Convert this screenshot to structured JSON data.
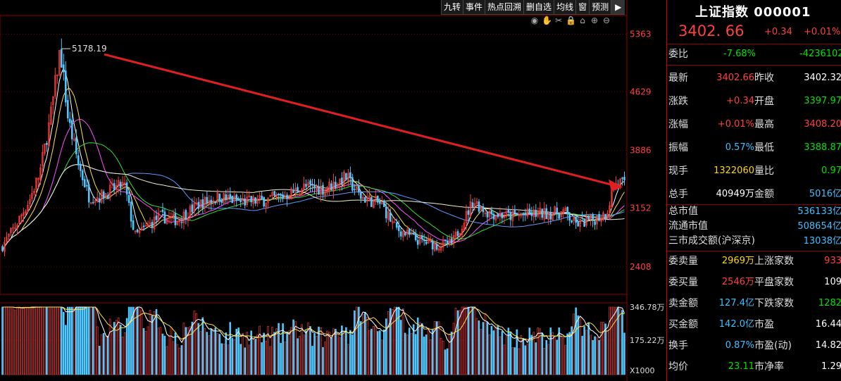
{
  "toolbar": [
    "九转",
    "事件",
    "热点回溯",
    "删自选",
    "均线",
    "窗",
    "预测"
  ],
  "toolbar_arrow": "▶",
  "icons": [
    "eye-icon",
    "hand-icon",
    "scissors-icon",
    "lock-icon",
    "home-icon",
    "zoom-in-icon",
    "zoom-out-icon"
  ],
  "chart_data": {
    "type": "candlestick",
    "price_axis": {
      "ticks": [
        "5363",
        "4629",
        "3886",
        "3152",
        "2408"
      ],
      "values": [
        5363,
        4629,
        3886,
        3152,
        2408
      ],
      "range": [
        2058,
        5600
      ]
    },
    "peak_label": "5178.19",
    "peak_value": 5178.19,
    "arrow": {
      "from_value": 5178.19,
      "to_value": 3402.66
    },
    "volume_axis": {
      "ticks": [
        "346.78万",
        "175.22万"
      ],
      "unit": "X1000"
    },
    "colors": {
      "up": "#ff3c3c",
      "down": "#4fc8ff",
      "ma5": "#ffffff",
      "ma10": "#ffe04a",
      "ma20": "#ff50ff",
      "ma30": "#32e032",
      "ma60": "#5a9cff",
      "ma120": "#f0f0d0",
      "arrow": "#e02020"
    }
  },
  "panel": {
    "title": "上证指数 000001",
    "price": "3402. 66",
    "change": "+0.34",
    "change_pct": "+0.01%",
    "weibi": {
      "label": "委比",
      "pct": "-7.68%",
      "val": "-4236102"
    },
    "rows": [
      {
        "l1": "最新",
        "v1": "3402.66",
        "c1": "red",
        "l2": "昨收",
        "v2": "3402.32",
        "c2": "white"
      },
      {
        "l1": "涨跌",
        "v1": "+0.34",
        "c1": "red",
        "l2": "开盘",
        "v2": "3397.97",
        "c2": "green"
      },
      {
        "l1": "涨幅",
        "v1": "+0.01%",
        "c1": "red",
        "l2": "最高",
        "v2": "3408.20",
        "c2": "red"
      },
      {
        "l1": "振幅",
        "v1": "0.57%",
        "c1": "cyan",
        "l2": "最低",
        "v2": "3388.87",
        "c2": "green"
      },
      {
        "l1": "现手",
        "v1": "1322060",
        "c1": "yellow",
        "l2": "量比",
        "v2": "0.97",
        "c2": "green"
      },
      {
        "l1": "总手",
        "v1": "40949万",
        "c1": "white",
        "l2": "金额",
        "v2": "5016亿",
        "c2": "cyan"
      }
    ],
    "market": [
      {
        "l": "总市值",
        "v": "536133亿"
      },
      {
        "l": "流通市值",
        "v": "508654亿"
      },
      {
        "l": "三市成交额(沪深京)",
        "v": "13038亿"
      }
    ],
    "rows2": [
      {
        "l1": "委卖量",
        "v1": "2969万",
        "c1": "yellow",
        "l2": "上涨家数",
        "v2": "933",
        "c2": "red"
      },
      {
        "l1": "委买量",
        "v1": "2546万",
        "c1": "red",
        "l2": "平盘家数",
        "v2": "109",
        "c2": "white"
      },
      {
        "l1": "卖金额",
        "v1": "127.4亿",
        "c1": "cyan",
        "l2": "下跌家数",
        "v2": "1282",
        "c2": "green"
      },
      {
        "l1": "买金额",
        "v1": "142.0亿",
        "c1": "cyan",
        "l2": "市盈",
        "v2": "16.44",
        "c2": "white"
      },
      {
        "l1": "换手",
        "v1": "0.87%",
        "c1": "cyan",
        "l2": "市盈(动)",
        "v2": "14.82",
        "c2": "white"
      },
      {
        "l1": "均价",
        "v1": "23.11",
        "c1": "green",
        "l2": "市净率",
        "v2": "1.29",
        "c2": "white"
      }
    ]
  }
}
